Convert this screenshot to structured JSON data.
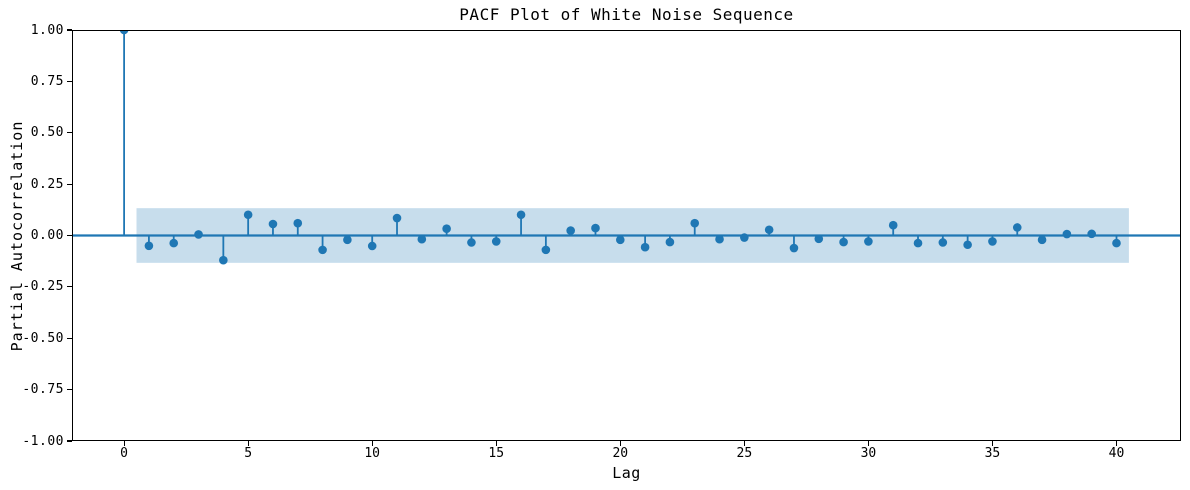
{
  "chart_data": {
    "type": "stem",
    "title": "PACF Plot of White Noise Sequence",
    "xlabel": "Lag",
    "ylabel": "Partial Autocorrelation",
    "lags": [
      0,
      1,
      2,
      3,
      4,
      5,
      6,
      7,
      8,
      9,
      10,
      11,
      12,
      13,
      14,
      15,
      16,
      17,
      18,
      19,
      20,
      21,
      22,
      23,
      24,
      25,
      26,
      27,
      28,
      29,
      30,
      31,
      32,
      33,
      34,
      35,
      36,
      37,
      38,
      39,
      40
    ],
    "values": [
      1.0,
      -0.05,
      -0.037,
      0.005,
      -0.12,
      0.101,
      0.056,
      0.06,
      -0.07,
      -0.021,
      -0.051,
      0.085,
      -0.018,
      0.033,
      -0.034,
      -0.029,
      0.101,
      -0.07,
      0.024,
      0.036,
      -0.021,
      -0.057,
      -0.032,
      0.06,
      -0.018,
      -0.01,
      0.028,
      -0.061,
      -0.016,
      -0.032,
      -0.029,
      0.05,
      -0.037,
      -0.034,
      -0.045,
      -0.029,
      0.039,
      -0.021,
      0.007,
      0.008,
      -0.037
    ],
    "confidence_band": {
      "upper": 0.133,
      "lower": -0.133,
      "x_start": 0.5,
      "x_end": 40.5
    },
    "xlim": [
      -2.1,
      42.6
    ],
    "ylim": [
      -1.0,
      1.0
    ],
    "xticks": [
      0,
      5,
      10,
      15,
      20,
      25,
      30,
      35,
      40
    ],
    "xtick_labels": [
      "0",
      "5",
      "10",
      "15",
      "20",
      "25",
      "30",
      "35",
      "40"
    ],
    "yticks": [
      1.0,
      0.75,
      0.5,
      0.25,
      0.0,
      -0.25,
      -0.5,
      -0.75,
      -1.0
    ],
    "ytick_labels": [
      "1.00",
      "0.75",
      "0.50",
      "0.25",
      "0.00",
      "-0.25",
      "-0.50",
      "-0.75",
      "-1.00"
    ],
    "grid": false,
    "legend": null,
    "colors": {
      "stem": "#1f77b4",
      "marker": "#1f77b4",
      "zero_line": "#1f77b4",
      "band_fill": "rgba(31,119,180,0.25)",
      "axis": "#000000",
      "background": "#ffffff"
    },
    "marker_radius": 4.3,
    "stem_width": 1.8,
    "zero_line_width": 2.2
  }
}
